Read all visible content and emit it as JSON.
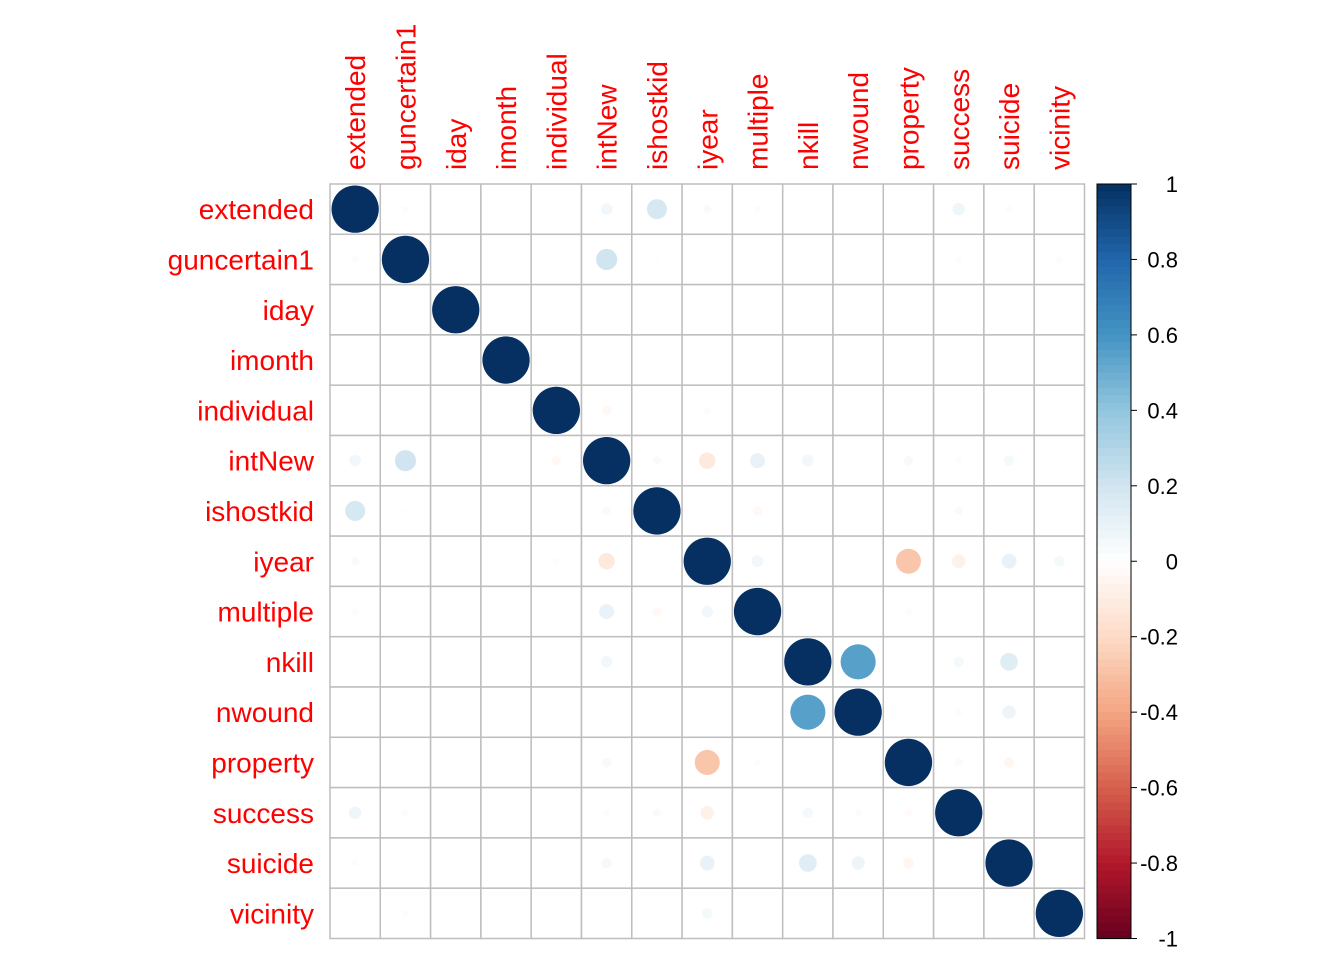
{
  "chart_data": {
    "type": "heatmap",
    "title": "",
    "variables": [
      "extended",
      "guncertain1",
      "iday",
      "imonth",
      "individual",
      "intNew",
      "ishostkid",
      "iyear",
      "multiple",
      "nkill",
      "nwound",
      "property",
      "success",
      "suicide",
      "vicinity"
    ],
    "matrix": [
      [
        1,
        0.02,
        0,
        0,
        0,
        0.06,
        0.18,
        0.03,
        0.02,
        0.01,
        0,
        0,
        0.07,
        0.02,
        0.01
      ],
      [
        0.02,
        1,
        0,
        0,
        0,
        0.2,
        -0.01,
        0,
        0.01,
        0,
        0,
        0.01,
        0.02,
        0,
        0.02
      ],
      [
        0,
        0,
        1,
        0,
        0,
        0,
        0,
        0.01,
        0,
        0,
        0,
        0,
        0,
        0,
        0
      ],
      [
        0,
        0,
        0,
        1,
        0,
        0,
        0,
        0,
        0,
        0,
        0,
        0,
        0,
        0,
        0
      ],
      [
        0,
        0,
        0,
        0,
        1,
        -0.04,
        0,
        0.02,
        0.01,
        0,
        0,
        0.01,
        0.01,
        0,
        0
      ],
      [
        0.06,
        0.2,
        0,
        0,
        -0.04,
        1,
        0.03,
        -0.12,
        0.1,
        0.06,
        0.01,
        0.04,
        0.02,
        0.05,
        0.01
      ],
      [
        0.18,
        -0.01,
        0,
        0,
        0,
        0.03,
        1,
        0.01,
        -0.04,
        0.01,
        0,
        0.01,
        0.03,
        0.01,
        0
      ],
      [
        0.03,
        0,
        0.01,
        0,
        0.02,
        -0.12,
        0.01,
        1,
        0.06,
        0,
        0,
        -0.28,
        -0.08,
        0.1,
        0.05
      ],
      [
        0.02,
        0.01,
        0,
        0,
        0.01,
        0.1,
        -0.04,
        0.06,
        1,
        0,
        0,
        -0.02,
        0.01,
        0.01,
        0
      ],
      [
        0.01,
        0,
        0,
        0,
        0,
        0.06,
        0.01,
        0,
        0,
        1,
        0.55,
        0.01,
        0.05,
        0.14,
        0
      ],
      [
        0,
        0,
        0,
        0,
        0,
        0.01,
        0,
        0,
        0,
        0.55,
        1,
        0.01,
        0.02,
        0.08,
        0
      ],
      [
        0,
        0.01,
        0,
        0,
        0.01,
        0.04,
        0.01,
        -0.28,
        -0.02,
        0.01,
        0.01,
        1,
        -0.03,
        -0.05,
        0.01
      ],
      [
        0.07,
        0.02,
        0,
        0,
        0.01,
        0.02,
        0.03,
        -0.08,
        0.01,
        0.05,
        0.02,
        -0.03,
        1,
        0.01,
        0
      ],
      [
        0.02,
        0,
        0,
        0,
        0,
        0.05,
        0.01,
        0.1,
        0.01,
        0.14,
        0.08,
        -0.05,
        0.01,
        1,
        0
      ],
      [
        0.01,
        0.02,
        0,
        0,
        0,
        0.01,
        0,
        0.05,
        0,
        0,
        0,
        0.01,
        0,
        0,
        1
      ]
    ],
    "colorbar": {
      "range": [
        -1,
        1
      ],
      "ticks": [
        "1",
        "0.8",
        "0.6",
        "0.4",
        "0.2",
        "0",
        "-0.2",
        "-0.4",
        "-0.6",
        "-0.8",
        "-1"
      ]
    },
    "colors": {
      "label": "#ff0000",
      "grid": "#bebebe",
      "positive_strong": "#053061",
      "negative_strong": "#67001f",
      "neutral": "#ffffff"
    }
  }
}
